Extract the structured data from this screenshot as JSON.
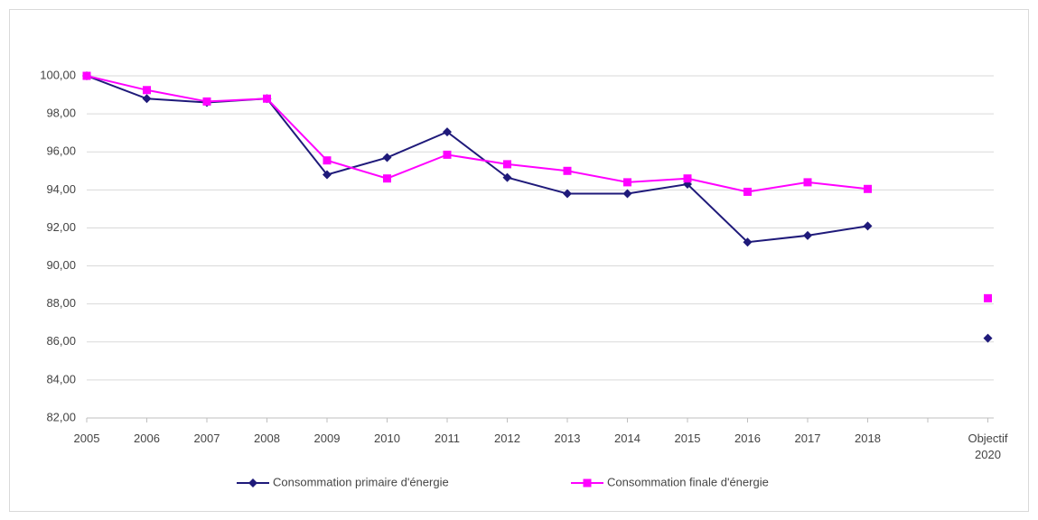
{
  "chart_data": {
    "type": "line",
    "categories": [
      "2005",
      "2006",
      "2007",
      "2008",
      "2009",
      "2010",
      "2011",
      "2012",
      "2013",
      "2014",
      "2015",
      "2016",
      "2017",
      "2018",
      null,
      "Objectif 2020"
    ],
    "series": [
      {
        "name": "Consommation primaire d'énergie",
        "color": "#1f1a7a",
        "marker": "diamond",
        "values": [
          100,
          98.8,
          98.6,
          98.8,
          94.8,
          95.7,
          97.05,
          94.65,
          93.8,
          93.8,
          94.3,
          91.25,
          91.6,
          92.1,
          null,
          86.2
        ]
      },
      {
        "name": "Consommation finale d'énergie",
        "color": "#ff00ff",
        "marker": "square",
        "values": [
          100,
          99.25,
          98.65,
          98.8,
          95.55,
          94.6,
          95.85,
          95.35,
          95.0,
          94.4,
          94.6,
          93.9,
          94.4,
          94.05,
          null,
          88.3
        ]
      }
    ],
    "ylim": [
      82,
      100
    ],
    "yticks": [
      {
        "value": 82,
        "label": "82,00"
      },
      {
        "value": 84,
        "label": "84,00"
      },
      {
        "value": 86,
        "label": "86,00"
      },
      {
        "value": 88,
        "label": "88,00"
      },
      {
        "value": 90,
        "label": "90,00"
      },
      {
        "value": 92,
        "label": "92,00"
      },
      {
        "value": 94,
        "label": "94,00"
      },
      {
        "value": 96,
        "label": "96,00"
      },
      {
        "value": 98,
        "label": "98,00"
      },
      {
        "value": 100,
        "label": "100,00"
      }
    ],
    "grid": true,
    "legend": "bottom"
  }
}
